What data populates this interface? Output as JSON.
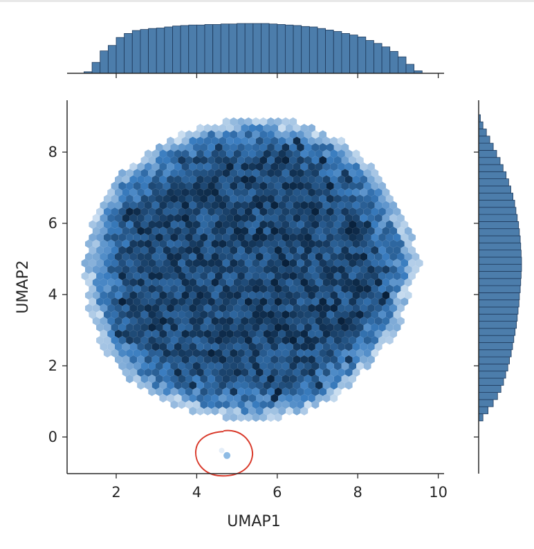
{
  "chart_data": {
    "type": "hexbin",
    "xlabel": "UMAP1",
    "ylabel": "UMAP2",
    "xlim": [
      0.8,
      10.2
    ],
    "ylim": [
      -1.05,
      9.3
    ],
    "xticks": [
      2,
      4,
      6,
      8,
      10
    ],
    "yticks": [
      0,
      2,
      4,
      6,
      8
    ],
    "xtick_labels": [
      "2",
      "4",
      "6",
      "8",
      "10"
    ],
    "ytick_labels": [
      "0",
      "2",
      "4",
      "6",
      "8"
    ],
    "cluster": {
      "center": [
        5.4,
        4.7
      ],
      "x_range": [
        1.2,
        9.7
      ],
      "y_range": [
        0.5,
        9.0
      ]
    },
    "outlier_points": [
      [
        4.62,
        -0.38
      ],
      [
        4.75,
        -0.52
      ]
    ],
    "annotation": {
      "kind": "hand-drawn circle",
      "color": "#d93a2b",
      "center": [
        4.7,
        -0.45
      ]
    },
    "marginal_x": {
      "type": "histogram",
      "bins": [
        {
          "x": 1.3,
          "count": 0.03
        },
        {
          "x": 1.5,
          "count": 0.22
        },
        {
          "x": 1.7,
          "count": 0.45
        },
        {
          "x": 1.9,
          "count": 0.56
        },
        {
          "x": 2.1,
          "count": 0.72
        },
        {
          "x": 2.3,
          "count": 0.8
        },
        {
          "x": 2.5,
          "count": 0.86
        },
        {
          "x": 2.7,
          "count": 0.88
        },
        {
          "x": 2.9,
          "count": 0.9
        },
        {
          "x": 3.1,
          "count": 0.91
        },
        {
          "x": 3.3,
          "count": 0.93
        },
        {
          "x": 3.5,
          "count": 0.95
        },
        {
          "x": 3.7,
          "count": 0.96
        },
        {
          "x": 3.9,
          "count": 0.97
        },
        {
          "x": 4.1,
          "count": 0.97
        },
        {
          "x": 4.3,
          "count": 0.98
        },
        {
          "x": 4.5,
          "count": 0.98
        },
        {
          "x": 4.7,
          "count": 0.99
        },
        {
          "x": 4.9,
          "count": 0.99
        },
        {
          "x": 5.1,
          "count": 1.0
        },
        {
          "x": 5.3,
          "count": 1.0
        },
        {
          "x": 5.5,
          "count": 1.0
        },
        {
          "x": 5.7,
          "count": 1.0
        },
        {
          "x": 5.9,
          "count": 0.99
        },
        {
          "x": 6.1,
          "count": 0.98
        },
        {
          "x": 6.3,
          "count": 0.97
        },
        {
          "x": 6.5,
          "count": 0.96
        },
        {
          "x": 6.7,
          "count": 0.94
        },
        {
          "x": 6.9,
          "count": 0.93
        },
        {
          "x": 7.1,
          "count": 0.9
        },
        {
          "x": 7.3,
          "count": 0.87
        },
        {
          "x": 7.5,
          "count": 0.84
        },
        {
          "x": 7.7,
          "count": 0.8
        },
        {
          "x": 7.9,
          "count": 0.77
        },
        {
          "x": 8.1,
          "count": 0.73
        },
        {
          "x": 8.3,
          "count": 0.66
        },
        {
          "x": 8.5,
          "count": 0.6
        },
        {
          "x": 8.7,
          "count": 0.53
        },
        {
          "x": 8.9,
          "count": 0.44
        },
        {
          "x": 9.1,
          "count": 0.33
        },
        {
          "x": 9.3,
          "count": 0.18
        },
        {
          "x": 9.5,
          "count": 0.05
        }
      ]
    },
    "marginal_y": {
      "type": "histogram",
      "bins": [
        {
          "y": 0.55,
          "count": 0.1
        },
        {
          "y": 0.75,
          "count": 0.22
        },
        {
          "y": 0.95,
          "count": 0.34
        },
        {
          "y": 1.15,
          "count": 0.44
        },
        {
          "y": 1.35,
          "count": 0.52
        },
        {
          "y": 1.55,
          "count": 0.58
        },
        {
          "y": 1.75,
          "count": 0.63
        },
        {
          "y": 1.95,
          "count": 0.68
        },
        {
          "y": 2.15,
          "count": 0.72
        },
        {
          "y": 2.35,
          "count": 0.76
        },
        {
          "y": 2.55,
          "count": 0.79
        },
        {
          "y": 2.75,
          "count": 0.82
        },
        {
          "y": 2.95,
          "count": 0.85
        },
        {
          "y": 3.15,
          "count": 0.88
        },
        {
          "y": 3.35,
          "count": 0.9
        },
        {
          "y": 3.55,
          "count": 0.92
        },
        {
          "y": 3.75,
          "count": 0.94
        },
        {
          "y": 3.95,
          "count": 0.95
        },
        {
          "y": 4.15,
          "count": 0.97
        },
        {
          "y": 4.35,
          "count": 0.98
        },
        {
          "y": 4.55,
          "count": 0.99
        },
        {
          "y": 4.75,
          "count": 1.0
        },
        {
          "y": 4.95,
          "count": 1.0
        },
        {
          "y": 5.15,
          "count": 0.99
        },
        {
          "y": 5.35,
          "count": 0.98
        },
        {
          "y": 5.55,
          "count": 0.97
        },
        {
          "y": 5.75,
          "count": 0.95
        },
        {
          "y": 5.95,
          "count": 0.93
        },
        {
          "y": 6.15,
          "count": 0.9
        },
        {
          "y": 6.35,
          "count": 0.87
        },
        {
          "y": 6.55,
          "count": 0.84
        },
        {
          "y": 6.75,
          "count": 0.8
        },
        {
          "y": 6.95,
          "count": 0.75
        },
        {
          "y": 7.15,
          "count": 0.7
        },
        {
          "y": 7.35,
          "count": 0.64
        },
        {
          "y": 7.55,
          "count": 0.57
        },
        {
          "y": 7.75,
          "count": 0.5
        },
        {
          "y": 7.95,
          "count": 0.42
        },
        {
          "y": 8.15,
          "count": 0.34
        },
        {
          "y": 8.35,
          "count": 0.26
        },
        {
          "y": 8.55,
          "count": 0.18
        },
        {
          "y": 8.75,
          "count": 0.1
        },
        {
          "y": 8.95,
          "count": 0.04
        }
      ]
    },
    "colors": {
      "hist_fill": "#4c7dab",
      "hist_edge": "#1e3a5c",
      "hex_min": "#dbe9f6",
      "hex_mid": "#3a7dc0",
      "hex_max": "#08203a",
      "spine": "#262626"
    }
  }
}
